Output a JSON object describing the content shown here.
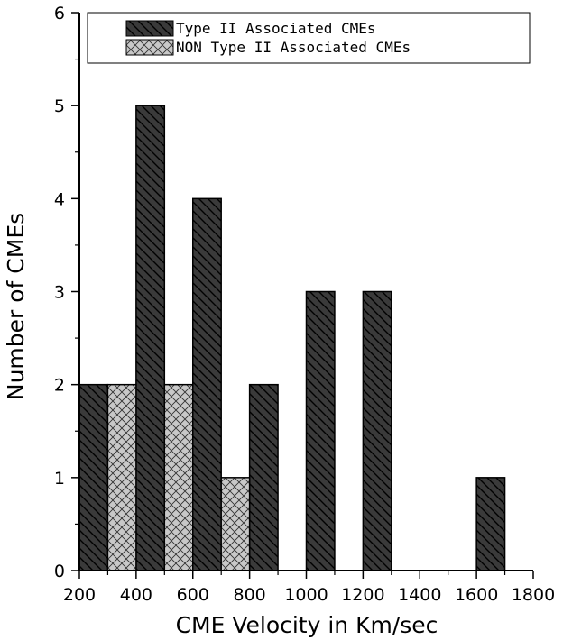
{
  "chart_data": {
    "type": "bar",
    "xlabel": "CME Velocity in Km/sec",
    "ylabel": "Number of CMEs",
    "xlim": [
      200,
      1800
    ],
    "ylim": [
      0,
      6
    ],
    "x_ticks": [
      "200",
      "400",
      "600",
      "800",
      "1000",
      "1200",
      "1400",
      "1600",
      "1800"
    ],
    "y_ticks": [
      "0",
      "1",
      "2",
      "3",
      "4",
      "5",
      "6"
    ],
    "bin_width": 100,
    "grid": false,
    "legend_position": "top",
    "series": [
      {
        "name": "Type II Associated CMEs",
        "color": "#3a3a3a",
        "pattern": "diagonal-hatch",
        "bins": [
          {
            "start": 200,
            "end": 300,
            "value": 2
          },
          {
            "start": 400,
            "end": 500,
            "value": 5
          },
          {
            "start": 600,
            "end": 700,
            "value": 4
          },
          {
            "start": 800,
            "end": 900,
            "value": 2
          },
          {
            "start": 1000,
            "end": 1100,
            "value": 3
          },
          {
            "start": 1200,
            "end": 1300,
            "value": 3
          },
          {
            "start": 1600,
            "end": 1700,
            "value": 1
          }
        ]
      },
      {
        "name": "NON Type II Associated CMEs",
        "color": "#c8c8c8",
        "pattern": "cross-hatch",
        "bins": [
          {
            "start": 300,
            "end": 400,
            "value": 2
          },
          {
            "start": 500,
            "end": 600,
            "value": 2
          },
          {
            "start": 700,
            "end": 800,
            "value": 1
          }
        ]
      }
    ]
  }
}
